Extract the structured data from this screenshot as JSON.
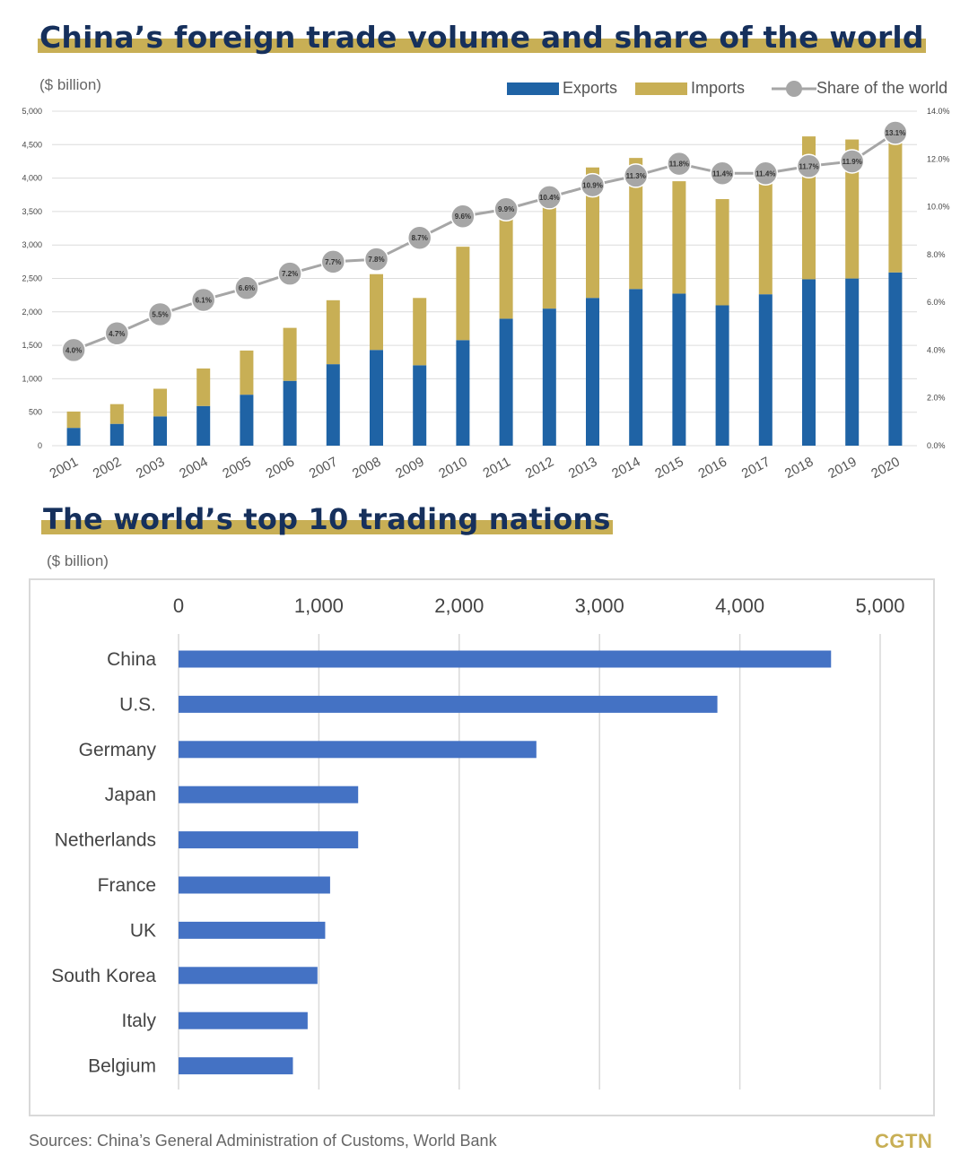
{
  "charts_header": {
    "title1": "China’s foreign trade volume and share of the world",
    "title2": "The world’s top 10 trading nations",
    "unit1": "($ billion)",
    "unit2": "($ billion)"
  },
  "legend": {
    "exports": "Exports",
    "imports": "Imports",
    "share": "Share of the world"
  },
  "colors": {
    "exports": "#1f63a5",
    "imports": "#c8af55",
    "share": "#a6a6a6",
    "bar2": "#4472c4",
    "title": "#16305c"
  },
  "footer": {
    "source": "Sources: China’s General Administration of Customs, World Bank",
    "logo": "CGTN"
  },
  "chart_data": [
    {
      "type": "bar",
      "stacked": true,
      "categories": [
        "2001",
        "2002",
        "2003",
        "2004",
        "2005",
        "2006",
        "2007",
        "2008",
        "2009",
        "2010",
        "2011",
        "2012",
        "2013",
        "2014",
        "2015",
        "2016",
        "2017",
        "2018",
        "2019",
        "2020"
      ],
      "series": [
        {
          "name": "Exports",
          "values": [
            266,
            326,
            438,
            593,
            762,
            969,
            1218,
            1431,
            1202,
            1578,
            1898,
            2049,
            2209,
            2342,
            2273,
            2098,
            2263,
            2487,
            2499,
            2590
          ]
        },
        {
          "name": "Imports",
          "values": [
            244,
            295,
            413,
            561,
            660,
            792,
            956,
            1133,
            1006,
            1396,
            1743,
            1818,
            1950,
            1959,
            1680,
            1588,
            1843,
            2136,
            2078,
            2056
          ]
        },
        {
          "name": "Share of the world",
          "axis": "right",
          "type": "line",
          "values": [
            4.0,
            4.7,
            5.5,
            6.1,
            6.6,
            7.2,
            7.7,
            7.8,
            8.7,
            9.6,
            9.9,
            10.4,
            10.9,
            11.3,
            11.8,
            11.4,
            11.4,
            11.7,
            11.9,
            13.1
          ],
          "labels": [
            "4.0%",
            "4.7%",
            "5.5%",
            "6.1%",
            "6.6%",
            "7.2%",
            "7.7%",
            "7.8%",
            "8.7%",
            "9.6%",
            "9.9%",
            "10.4%",
            "10.9%",
            "11.3%",
            "11.8%",
            "11.4%",
            "11.4%",
            "11.7%",
            "11.9%",
            "13.1%"
          ]
        }
      ],
      "ylim": [
        0,
        5000
      ],
      "yticks": [
        "0",
        "500",
        "1,000",
        "1,500",
        "2,000",
        "2,500",
        "3,000",
        "3,500",
        "4,000",
        "4,500",
        "5,000"
      ],
      "y2lim": [
        0,
        14
      ],
      "y2ticks": [
        "0.0%",
        "2.0%",
        "4.0%",
        "6.0%",
        "8.0%",
        "10.0%",
        "12.0%",
        "14.0%"
      ],
      "grid": true,
      "legend_position": "top-right"
    },
    {
      "type": "bar",
      "orientation": "horizontal",
      "categories": [
        "China",
        "U.S.",
        "Germany",
        "Japan",
        "Netherlands",
        "France",
        "UK",
        "South Korea",
        "Italy",
        "Belgium"
      ],
      "values": [
        4650,
        3840,
        2550,
        1280,
        1280,
        1080,
        1045,
        990,
        920,
        815
      ],
      "xlim": [
        0,
        5000
      ],
      "xticks": [
        "0",
        "1,000",
        "2,000",
        "3,000",
        "4,000",
        "5,000"
      ],
      "grid": true
    }
  ]
}
